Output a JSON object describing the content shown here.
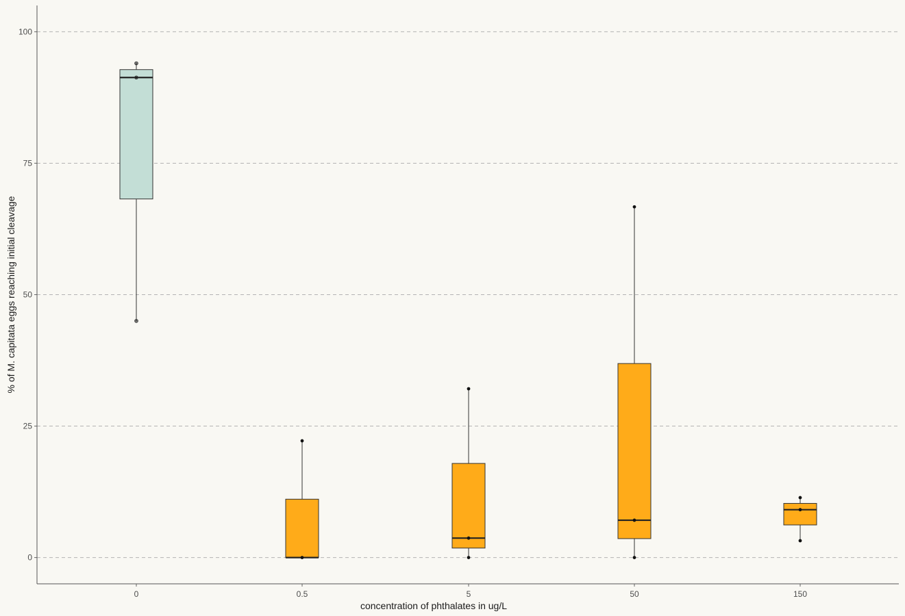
{
  "chart_data": {
    "type": "boxplot",
    "title": "",
    "xlabel": "concentration of phthalates in ug/L",
    "ylabel": "% of M. capitata eggs reaching initial cleavage",
    "categories": [
      "0",
      "0.5",
      "5",
      "50",
      "150"
    ],
    "ylim": [
      -5,
      105
    ],
    "yticks": [
      0,
      25,
      50,
      75,
      100
    ],
    "grid": "horizontal dashed",
    "colors": {
      "control_fill": "#c3ded6",
      "treatment_fill": "#ffab19",
      "box_stroke": "#333333",
      "point": "#111111",
      "grid": "#b3b3b3",
      "background": "#f9f8f3"
    },
    "boxes": [
      {
        "category": "0",
        "min": 45,
        "q1": 68.2,
        "median": 91.3,
        "q3": 92.8,
        "max": 94,
        "points": [
          45,
          91.3,
          94
        ],
        "fill": "control_fill"
      },
      {
        "category": "0.5",
        "min": 0,
        "q1": 0,
        "median": 0,
        "q3": 11.1,
        "max": 22.2,
        "points": [
          0,
          22.2
        ],
        "fill": "treatment_fill"
      },
      {
        "category": "5",
        "min": 0,
        "q1": 1.8,
        "median": 3.7,
        "q3": 17.9,
        "max": 32.1,
        "points": [
          0,
          3.7,
          32.1
        ],
        "fill": "treatment_fill"
      },
      {
        "category": "50",
        "min": 0,
        "q1": 3.6,
        "median": 7.1,
        "q3": 36.9,
        "max": 66.7,
        "points": [
          0,
          7.1,
          66.7
        ],
        "fill": "treatment_fill"
      },
      {
        "category": "150",
        "min": 3.2,
        "q1": 6.2,
        "median": 9.1,
        "q3": 10.3,
        "max": 11.4,
        "points": [
          3.2,
          9.1,
          11.4
        ],
        "fill": "treatment_fill"
      }
    ]
  }
}
